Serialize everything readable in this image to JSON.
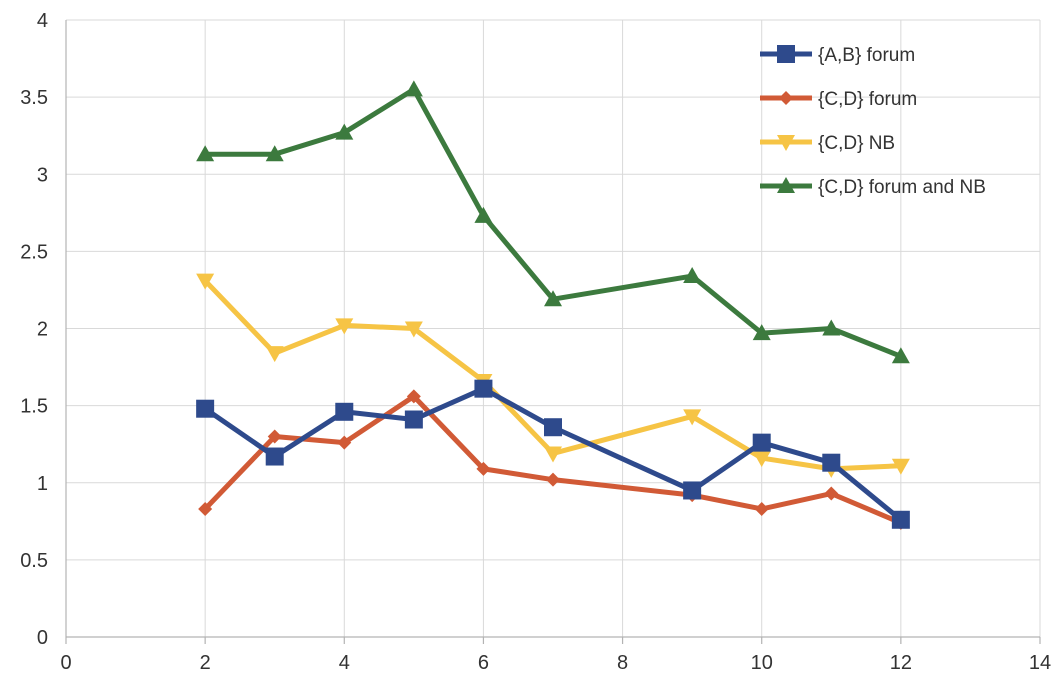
{
  "chart_data": {
    "type": "line",
    "title": "",
    "xlabel": "",
    "ylabel": "",
    "xlim": [
      0,
      14
    ],
    "ylim": [
      0,
      4
    ],
    "x_ticks": [
      0,
      2,
      4,
      6,
      8,
      10,
      12,
      14
    ],
    "y_ticks": [
      0,
      0.5,
      1,
      1.5,
      2,
      2.5,
      3,
      3.5,
      4
    ],
    "x_tick_labels": [
      "0",
      "2",
      "4",
      "6",
      "8",
      "10",
      "12",
      "14"
    ],
    "y_tick_labels": [
      "0",
      "0.5",
      "1",
      "1.5",
      "2",
      "2.5",
      "3",
      "3.5",
      "4"
    ],
    "grid": true,
    "legend_position": "top-right",
    "series": [
      {
        "name": "{A,B} forum",
        "color": "#2e4a8c",
        "marker": "square",
        "x": [
          2,
          3,
          4,
          5,
          6,
          7,
          9,
          10,
          11,
          12
        ],
        "y": [
          1.48,
          1.17,
          1.46,
          1.41,
          1.61,
          1.36,
          0.95,
          1.26,
          1.13,
          0.76
        ]
      },
      {
        "name": "{C,D} forum",
        "color": "#d15a36",
        "marker": "diamond",
        "x": [
          2,
          3,
          4,
          5,
          6,
          7,
          9,
          10,
          11,
          12
        ],
        "y": [
          0.83,
          1.3,
          1.26,
          1.56,
          1.09,
          1.02,
          0.92,
          0.83,
          0.93,
          0.74
        ]
      },
      {
        "name": "{C,D} NB",
        "color": "#f6c445",
        "marker": "triangle-down",
        "x": [
          2,
          3,
          4,
          5,
          6,
          7,
          9,
          10,
          11,
          12
        ],
        "y": [
          2.31,
          1.84,
          2.02,
          2.0,
          1.66,
          1.19,
          1.43,
          1.16,
          1.09,
          1.11
        ]
      },
      {
        "name": "{C,D} forum and NB",
        "color": "#3c7a3e",
        "marker": "triangle-up",
        "x": [
          2,
          3,
          4,
          5,
          6,
          7,
          9,
          10,
          11,
          12
        ],
        "y": [
          3.13,
          3.13,
          3.27,
          3.55,
          2.73,
          2.19,
          2.34,
          1.97,
          2.0,
          1.82
        ]
      }
    ]
  }
}
